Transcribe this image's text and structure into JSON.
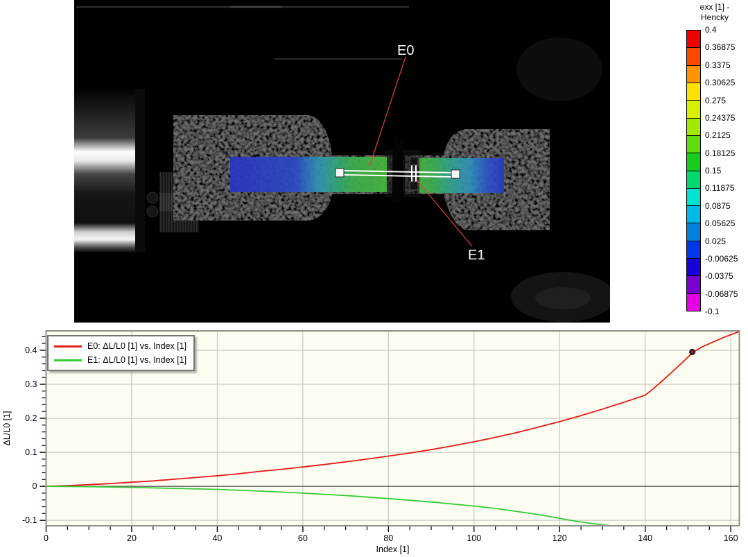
{
  "image_panel": {
    "labels": {
      "e0": "E0",
      "e1": "E1"
    }
  },
  "colorbar": {
    "title_line1": "exx [1] -",
    "title_line2": "Hencky",
    "colors": [
      "#f10000",
      "#fb4a00",
      "#ff9400",
      "#ffe100",
      "#d9ef00",
      "#a3e800",
      "#5fdc0c",
      "#16cd1d",
      "#00d86e",
      "#00e2d2",
      "#00b9e8",
      "#0080dd",
      "#0038e8",
      "#1a00d9",
      "#7a00d0",
      "#e400e4"
    ],
    "labels": [
      "0.4",
      "0.36875",
      "0.3375",
      "0.30625",
      "0.275",
      "0.24375",
      "0.2125",
      "0.18125",
      "0.15",
      "0.11875",
      "0.0875",
      "0.05625",
      "0.025",
      "-0.00625",
      "-0.0375",
      "-0.06875",
      "-0.1"
    ]
  },
  "chart_data": {
    "type": "line",
    "title": "",
    "xlabel": "Index [1]",
    "ylabel": "ΔL/L0 [1]",
    "xlim": [
      0,
      162
    ],
    "ylim": [
      -0.116,
      0.457
    ],
    "x_ticks": [
      0,
      20,
      40,
      60,
      80,
      100,
      120,
      140,
      160
    ],
    "y_ticks": [
      -0.1,
      0,
      0.1,
      0.2,
      0.3,
      0.4
    ],
    "x_minor_step": 5,
    "y_minor_step": 0.02,
    "grid": true,
    "plot_bg": "#fdfdf1",
    "grid_color": "#bfbfb2",
    "legend_position": "top-left",
    "series": [
      {
        "name": "E0: ΔL/L0 [1] vs. Index [1]",
        "color": "#e51a1a",
        "x": [
          0,
          5,
          10,
          15,
          20,
          25,
          30,
          35,
          40,
          45,
          50,
          55,
          60,
          65,
          70,
          75,
          80,
          85,
          90,
          95,
          100,
          105,
          110,
          115,
          120,
          125,
          130,
          135,
          140,
          142,
          144,
          146,
          148,
          150,
          151,
          153,
          156,
          159,
          162
        ],
        "y": [
          0,
          0.002,
          0.005,
          0.008,
          0.012,
          0.016,
          0.021,
          0.026,
          0.031,
          0.037,
          0.044,
          0.05,
          0.057,
          0.064,
          0.072,
          0.08,
          0.089,
          0.098,
          0.108,
          0.119,
          0.131,
          0.144,
          0.158,
          0.174,
          0.19,
          0.208,
          0.227,
          0.247,
          0.268,
          0.288,
          0.31,
          0.333,
          0.356,
          0.38,
          0.392,
          0.408,
          0.425,
          0.441,
          0.455
        ]
      },
      {
        "name": "E1: ΔL/L0 [1] vs. Index [1]",
        "color": "#33cc33",
        "x": [
          0,
          10,
          20,
          30,
          40,
          50,
          60,
          70,
          80,
          90,
          100,
          105,
          110,
          115,
          120,
          124,
          128,
          132
        ],
        "y": [
          0,
          -0.001,
          -0.003,
          -0.006,
          -0.009,
          -0.014,
          -0.02,
          -0.027,
          -0.036,
          -0.046,
          -0.058,
          -0.065,
          -0.074,
          -0.083,
          -0.094,
          -0.103,
          -0.11,
          -0.116
        ]
      }
    ],
    "marker": {
      "series": "E0",
      "x": 151,
      "y": 0.395,
      "fill": "#c01010",
      "ring": "#1d1d1d"
    }
  }
}
